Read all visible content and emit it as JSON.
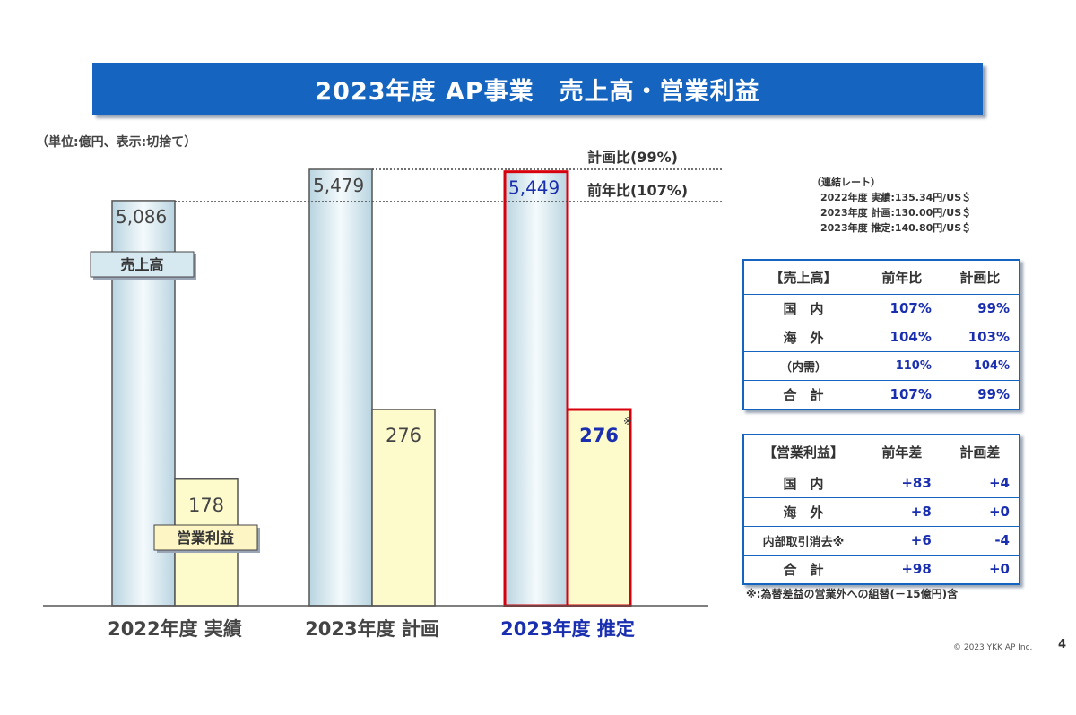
{
  "title": "2023年度 AP事業　売上高・営業利益",
  "unit_note": "（単位:億円、表示:切捨て）",
  "chart_data": {
    "type": "bar",
    "categories": [
      "2022年度 実績",
      "2023年度 計画",
      "2023年度 推定"
    ],
    "series": [
      {
        "name": "売上高",
        "values": [
          5086,
          5479,
          5449
        ],
        "labels": [
          "5,086",
          "5,479",
          "5,449"
        ]
      },
      {
        "name": "営業利益",
        "values": [
          178,
          276,
          276
        ],
        "labels": [
          "178",
          "276",
          "276"
        ]
      }
    ],
    "highlight_category": "2023年度 推定",
    "annotations": {
      "plan_ratio": "計画比(99%)",
      "yoy_ratio": "前年比(107%)",
      "asterisk": "※"
    },
    "colors": {
      "sales": "#cfe3ec",
      "profit": "#fdfacc",
      "highlight": "#d9000d",
      "highlight_text": "#1a2fb0",
      "banner": "#1565c0"
    }
  },
  "rates": {
    "header": "（連結レート）",
    "lines": [
      "2022年度 実績:135.34円/US＄",
      "2023年度 計画:130.00円/US＄",
      "2023年度 推定:140.80円/US＄"
    ]
  },
  "sales_table": {
    "headers": [
      "【売上高】",
      "前年比",
      "計画比"
    ],
    "rows": [
      {
        "label": "国　内",
        "a": "107%",
        "b": "99%"
      },
      {
        "label": "海　外",
        "a": "104%",
        "b": "103%"
      },
      {
        "label": "（内需）",
        "a": "110%",
        "b": "104%"
      },
      {
        "label": "合　計",
        "a": "107%",
        "b": "99%"
      }
    ]
  },
  "profit_table": {
    "headers": [
      "【営業利益】",
      "前年差",
      "計画差"
    ],
    "rows": [
      {
        "label": "国　内",
        "a": "+83",
        "b": "+4"
      },
      {
        "label": "海　外",
        "a": "+8",
        "b": "+0"
      },
      {
        "label": "内部取引消去※",
        "a": "+6",
        "b": "-4"
      },
      {
        "label": "合　計",
        "a": "+98",
        "b": "+0"
      }
    ]
  },
  "footnote": "※:為替差益の営業外への組替(－15億円)含",
  "copyright": "© 2023 YKK AP Inc.",
  "page_number": "4"
}
